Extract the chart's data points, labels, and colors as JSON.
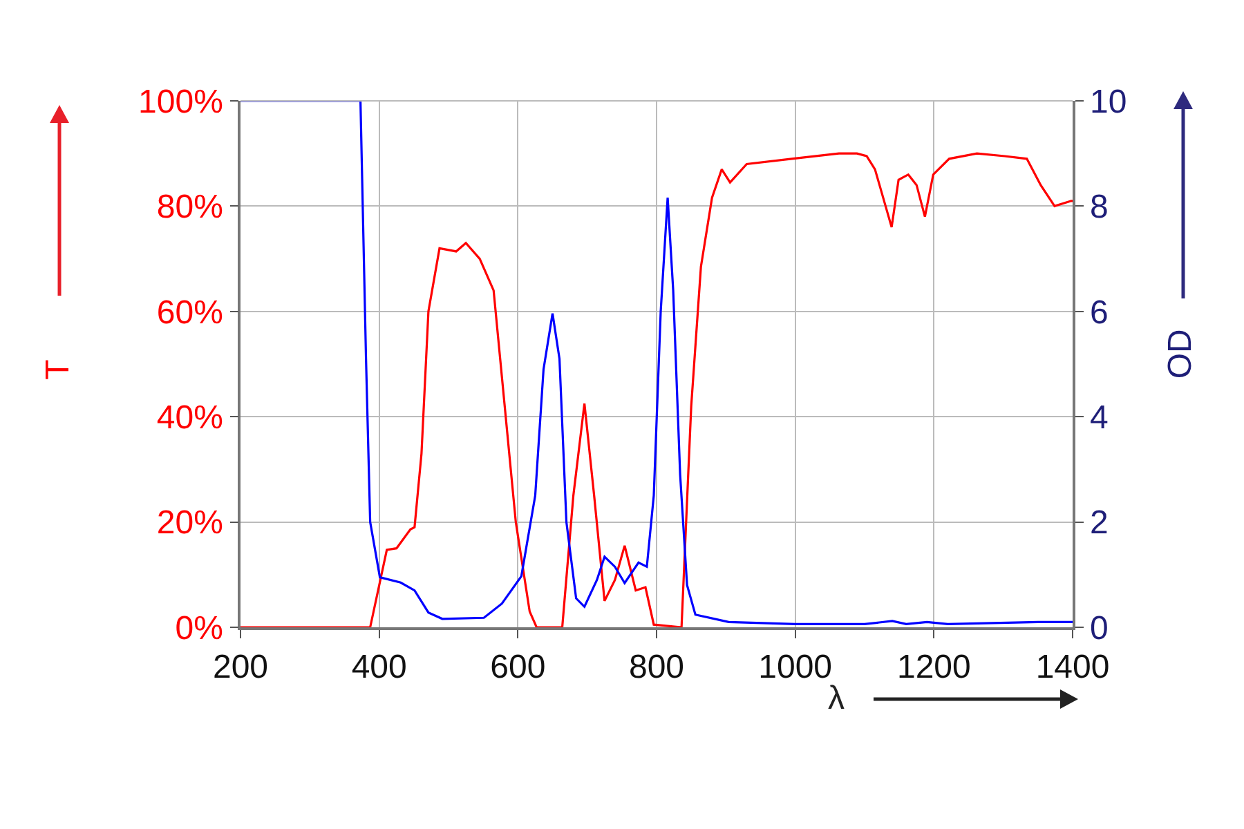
{
  "chart_data": {
    "type": "line",
    "xlabel": "λ",
    "ylabel": "T",
    "y2label": "OD",
    "xlim": [
      200,
      1400
    ],
    "xticks": [
      200,
      400,
      600,
      800,
      1000,
      1200,
      1400
    ],
    "ylim": [
      0,
      100
    ],
    "yticks": [
      {
        "value": 0,
        "label": "0%"
      },
      {
        "value": 20,
        "label": "20%"
      },
      {
        "value": 40,
        "label": "40%"
      },
      {
        "value": 60,
        "label": "60%"
      },
      {
        "value": 80,
        "label": "80%"
      },
      {
        "value": 100,
        "label": "100%"
      }
    ],
    "y2lim": [
      0,
      10
    ],
    "y2ticks": [
      0,
      2,
      4,
      6,
      8,
      10
    ],
    "grid": true,
    "line_style": "solid",
    "series": [
      {
        "color": "#ff0000",
        "x": [
          200,
          387,
          411,
          425,
          445,
          451,
          461,
          471,
          487,
          511,
          525,
          545,
          565,
          581,
          597,
          617,
          627,
          664,
          680,
          696,
          710,
          725,
          740,
          754,
          770,
          784,
          796,
          836,
          850,
          864,
          880,
          894,
          906,
          930,
          995,
          1063,
          1089,
          1103,
          1115,
          1129,
          1139,
          1149,
          1163,
          1175,
          1187,
          1199,
          1222,
          1262,
          1302,
          1334,
          1354,
          1374,
          1398,
          1400
        ],
        "values": [
          0,
          0,
          14.7,
          15,
          18.6,
          19,
          33,
          60,
          72,
          71.4,
          73,
          70,
          64,
          42,
          20,
          3,
          0,
          0,
          25,
          42.5,
          25,
          5,
          9,
          15.5,
          7,
          7.6,
          0.5,
          0,
          42,
          68.5,
          81.6,
          87,
          84.5,
          88,
          89,
          90,
          90,
          89.5,
          87,
          80.6,
          76,
          85,
          86,
          84,
          78,
          86,
          89,
          90,
          89.5,
          89,
          84,
          80,
          81,
          81
        ]
      },
      {
        "color": "#0000ff",
        "axis": "y2",
        "x": [
          200,
          373,
          381,
          387,
          401,
          431,
          451,
          471,
          491,
          551,
          577,
          605,
          625,
          637,
          650,
          660,
          670,
          684,
          696,
          714,
          725,
          740,
          754,
          774,
          786,
          796,
          806,
          816,
          824,
          834,
          844,
          856,
          904,
          1000,
          1100,
          1140,
          1160,
          1190,
          1220,
          1350,
          1400
        ],
        "values": [
          10,
          10,
          5.1,
          2,
          0.95,
          0.85,
          0.7,
          0.28,
          0.16,
          0.18,
          0.45,
          0.97,
          2.5,
          4.9,
          5.96,
          5.1,
          2,
          0.55,
          0.39,
          0.9,
          1.34,
          1.15,
          0.84,
          1.23,
          1.15,
          2.5,
          6,
          8.16,
          6.4,
          2.9,
          0.8,
          0.24,
          0.1,
          0.06,
          0.06,
          0.12,
          0.06,
          0.1,
          0.06,
          0.1,
          0.1
        ]
      }
    ]
  }
}
